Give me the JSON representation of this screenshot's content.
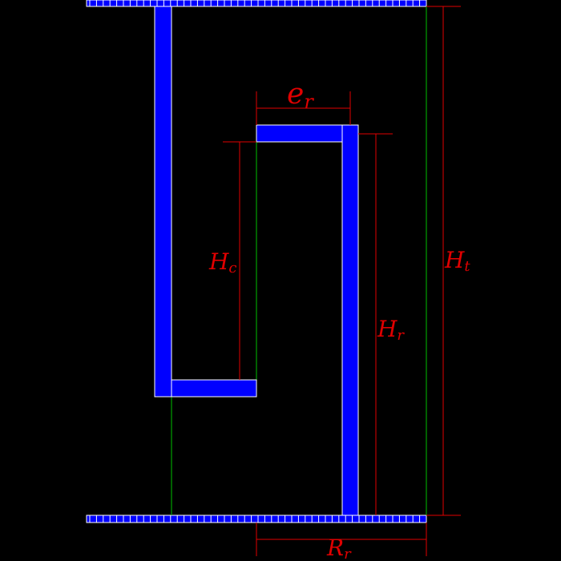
{
  "labels": {
    "e_main": "e",
    "e_sub": "r",
    "hc_main": "H",
    "hc_sub": "c",
    "hr_main": "H",
    "hr_sub": "r",
    "ht_main": "H",
    "ht_sub": "t",
    "rr_main": "R",
    "rr_sub": "r"
  },
  "colors": {
    "background": "#000000",
    "body": "#0000ff",
    "outline": "#ffffff",
    "dimension": "#e00000",
    "guide": "#00c000"
  }
}
